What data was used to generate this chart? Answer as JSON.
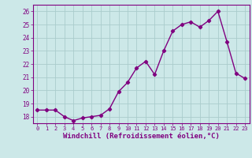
{
  "x": [
    0,
    1,
    2,
    3,
    4,
    5,
    6,
    7,
    8,
    9,
    10,
    11,
    12,
    13,
    14,
    15,
    16,
    17,
    18,
    19,
    20,
    21,
    22,
    23
  ],
  "y": [
    18.5,
    18.5,
    18.5,
    18.0,
    17.7,
    17.9,
    18.0,
    18.1,
    18.6,
    19.9,
    20.6,
    21.7,
    22.2,
    21.2,
    23.0,
    24.5,
    25.0,
    25.2,
    24.8,
    25.3,
    26.0,
    23.7,
    21.3,
    20.9
  ],
  "line_color": "#800080",
  "marker": "D",
  "marker_size": 2.2,
  "linewidth": 1.0,
  "bg_color": "#cce8e8",
  "grid_color": "#aacccc",
  "tick_color": "#800080",
  "xlabel": "Windchill (Refroidissement éolien,°C)",
  "xlabel_fontsize": 6.5,
  "ylabel_ticks": [
    18,
    19,
    20,
    21,
    22,
    23,
    24,
    25,
    26
  ],
  "xlim": [
    -0.5,
    23.5
  ],
  "ylim": [
    17.5,
    26.5
  ],
  "xticks": [
    0,
    1,
    2,
    3,
    4,
    5,
    6,
    7,
    8,
    9,
    10,
    11,
    12,
    13,
    14,
    15,
    16,
    17,
    18,
    19,
    20,
    21,
    22,
    23
  ]
}
